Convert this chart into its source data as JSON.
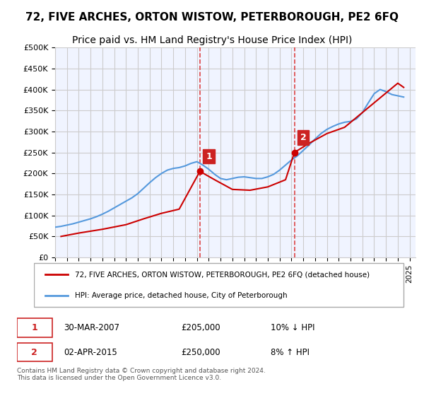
{
  "title": "72, FIVE ARCHES, ORTON WISTOW, PETERBOROUGH, PE2 6FQ",
  "subtitle": "Price paid vs. HM Land Registry's House Price Index (HPI)",
  "title_fontsize": 11,
  "subtitle_fontsize": 10,
  "ylabel_ticks": [
    "£0",
    "£50K",
    "£100K",
    "£150K",
    "£200K",
    "£250K",
    "£300K",
    "£350K",
    "£400K",
    "£450K",
    "£500K"
  ],
  "ytick_values": [
    0,
    50000,
    100000,
    150000,
    200000,
    250000,
    300000,
    350000,
    400000,
    450000,
    500000
  ],
  "ylim": [
    0,
    500000
  ],
  "xlim_start": 1995.0,
  "xlim_end": 2025.5,
  "background_color": "#ffffff",
  "plot_bg_color": "#f0f4ff",
  "grid_color": "#cccccc",
  "red_line_color": "#cc0000",
  "blue_line_color": "#5599dd",
  "marker1_date": 2007.25,
  "marker1_price": 205000,
  "marker1_label": "1",
  "marker2_date": 2015.25,
  "marker2_price": 250000,
  "marker2_label": "2",
  "vline_color": "#dd4444",
  "vline_style": "--",
  "annotation_box_color": "#cc2222",
  "legend_line1": "72, FIVE ARCHES, ORTON WISTOW, PETERBOROUGH, PE2 6FQ (detached house)",
  "legend_line2": "HPI: Average price, detached house, City of Peterborough",
  "table_row1": [
    "1",
    "30-MAR-2007",
    "£205,000",
    "10% ↓ HPI"
  ],
  "table_row2": [
    "2",
    "02-APR-2015",
    "£250,000",
    "8% ↑ HPI"
  ],
  "footnote": "Contains HM Land Registry data © Crown copyright and database right 2024.\nThis data is licensed under the Open Government Licence v3.0.",
  "hpi_years": [
    1995,
    1995.5,
    1996,
    1996.5,
    1997,
    1997.5,
    1998,
    1998.5,
    1999,
    1999.5,
    2000,
    2000.5,
    2001,
    2001.5,
    2002,
    2002.5,
    2003,
    2003.5,
    2004,
    2004.5,
    2005,
    2005.5,
    2006,
    2006.5,
    2007,
    2007.5,
    2008,
    2008.5,
    2009,
    2009.5,
    2010,
    2010.5,
    2011,
    2011.5,
    2012,
    2012.5,
    2013,
    2013.5,
    2014,
    2014.5,
    2015,
    2015.5,
    2016,
    2016.5,
    2017,
    2017.5,
    2018,
    2018.5,
    2019,
    2019.5,
    2020,
    2020.5,
    2021,
    2021.5,
    2022,
    2022.5,
    2023,
    2023.5,
    2024,
    2024.5
  ],
  "hpi_values": [
    72000,
    74000,
    77000,
    80000,
    84000,
    88000,
    92000,
    97000,
    103000,
    110000,
    118000,
    126000,
    134000,
    142000,
    152000,
    165000,
    178000,
    190000,
    200000,
    208000,
    212000,
    214000,
    218000,
    224000,
    228000,
    220000,
    210000,
    198000,
    188000,
    185000,
    188000,
    191000,
    192000,
    190000,
    188000,
    188000,
    192000,
    198000,
    208000,
    220000,
    232000,
    242000,
    255000,
    268000,
    282000,
    295000,
    305000,
    312000,
    318000,
    322000,
    324000,
    330000,
    345000,
    368000,
    390000,
    400000,
    395000,
    388000,
    385000,
    382000
  ],
  "price_years": [
    1995.5,
    1997,
    1999,
    2001,
    2002.5,
    2004,
    2005.5,
    2007.25,
    2008.5,
    2010,
    2011.5,
    2013,
    2014.5,
    2015.25,
    2016.5,
    2018,
    2019.5,
    2021,
    2022.5,
    2024,
    2024.5
  ],
  "price_values": [
    50000,
    58000,
    67000,
    78000,
    92000,
    105000,
    115000,
    205000,
    185000,
    162000,
    160000,
    168000,
    185000,
    250000,
    272000,
    295000,
    310000,
    345000,
    380000,
    415000,
    405000
  ]
}
